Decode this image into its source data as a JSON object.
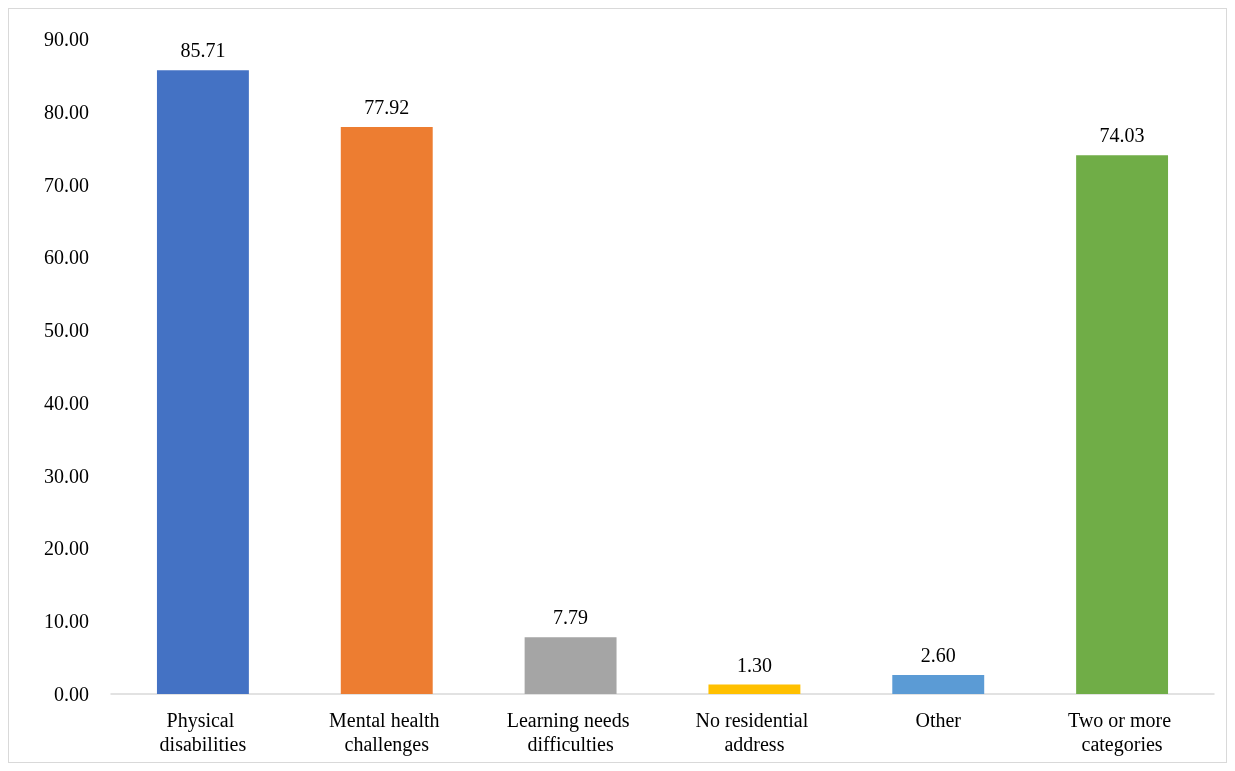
{
  "chart_data": {
    "type": "bar",
    "categories": [
      "Physical disabilities",
      "Mental health challenges",
      "Learning needs difficulties",
      "No residential address",
      "Other",
      "Two or more categories"
    ],
    "values": [
      85.71,
      77.92,
      7.79,
      1.3,
      2.6,
      74.03
    ],
    "colors": [
      "#4472c4",
      "#ed7d31",
      "#a5a5a5",
      "#ffc000",
      "#5b9bd5",
      "#70ad47"
    ],
    "value_labels": [
      "85.71",
      "77.92",
      "7.79",
      "1.30",
      "2.60",
      "74.03"
    ],
    "ylim": [
      0,
      90
    ],
    "yticks": [
      {
        "value": 0,
        "label": "0.00"
      },
      {
        "value": 10,
        "label": "10.00"
      },
      {
        "value": 20,
        "label": "20.00"
      },
      {
        "value": 30,
        "label": "30.00"
      },
      {
        "value": 40,
        "label": "40.00"
      },
      {
        "value": 50,
        "label": "50.00"
      },
      {
        "value": 60,
        "label": "60.00"
      },
      {
        "value": 70,
        "label": "70.00"
      },
      {
        "value": 80,
        "label": "80.00"
      },
      {
        "value": 90,
        "label": "90.00"
      }
    ],
    "grid": false
  }
}
